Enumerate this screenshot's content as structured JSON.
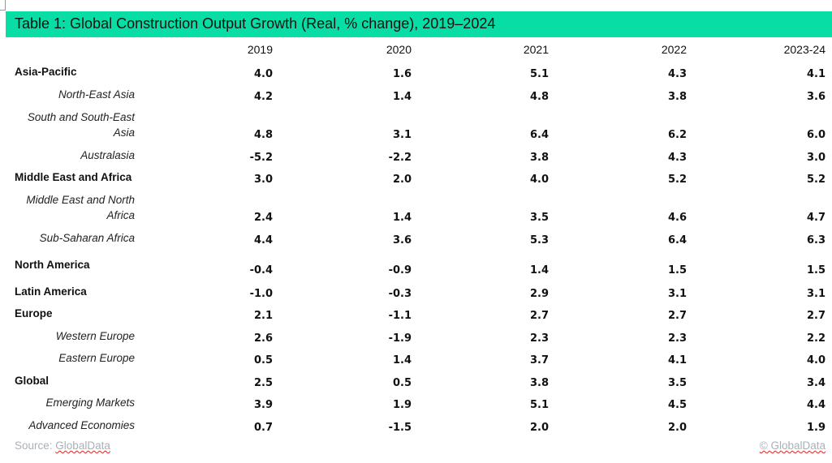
{
  "title": "Table 1: Global Construction Output Growth (Real, % change), 2019–2024",
  "accent_color": "#07dda5",
  "columns": [
    "2019",
    "2020",
    "2021",
    "2022",
    "2023-24"
  ],
  "rows": [
    {
      "label": "Asia-Pacific",
      "level": "region",
      "values": [
        "4.0",
        "1.6",
        "5.1",
        "4.3",
        "4.1"
      ]
    },
    {
      "label": "North-East Asia",
      "level": "sub",
      "values": [
        "4.2",
        "1.4",
        "4.8",
        "3.8",
        "3.6"
      ]
    },
    {
      "label": "South and South-East Asia",
      "level": "sub",
      "values": [
        "4.8",
        "3.1",
        "6.4",
        "6.2",
        "6.0"
      ]
    },
    {
      "label": "Australasia",
      "level": "sub",
      "values": [
        "-5.2",
        "-2.2",
        "3.8",
        "4.3",
        "3.0"
      ]
    },
    {
      "label": "Middle East and Africa",
      "level": "region",
      "values": [
        "3.0",
        "2.0",
        "4.0",
        "5.2",
        "5.2"
      ]
    },
    {
      "label": "Middle East and North Africa",
      "level": "sub",
      "values": [
        "2.4",
        "1.4",
        "3.5",
        "4.6",
        "4.7"
      ]
    },
    {
      "label": "Sub-Saharan Africa",
      "level": "sub",
      "values": [
        "4.4",
        "3.6",
        "5.3",
        "6.4",
        "6.3"
      ]
    },
    {
      "label": "North America",
      "level": "region",
      "values": [
        "-0.4",
        "-0.9",
        "1.4",
        "1.5",
        "1.5"
      ]
    },
    {
      "label": "Latin America",
      "level": "region",
      "values": [
        "-1.0",
        "-0.3",
        "2.9",
        "3.1",
        "3.1"
      ]
    },
    {
      "label": "Europe",
      "level": "region",
      "values": [
        "2.1",
        "-1.1",
        "2.7",
        "2.7",
        "2.7"
      ]
    },
    {
      "label": "Western Europe",
      "level": "sub",
      "values": [
        "2.6",
        "-1.9",
        "2.3",
        "2.3",
        "2.2"
      ]
    },
    {
      "label": "Eastern Europe",
      "level": "sub",
      "values": [
        "0.5",
        "1.4",
        "3.7",
        "4.1",
        "4.0"
      ]
    },
    {
      "label": "Global",
      "level": "region",
      "values": [
        "2.5",
        "0.5",
        "3.8",
        "3.5",
        "3.4"
      ]
    },
    {
      "label": "Emerging Markets",
      "level": "sub",
      "values": [
        "3.9",
        "1.9",
        "5.1",
        "4.5",
        "4.4"
      ]
    },
    {
      "label": "Advanced Economies",
      "level": "sub",
      "values": [
        "0.7",
        "-1.5",
        "2.0",
        "2.0",
        "1.9"
      ]
    }
  ],
  "footer": {
    "source_label": "Source:",
    "source_name": "GlobalData",
    "copyright": "© GlobalData"
  }
}
